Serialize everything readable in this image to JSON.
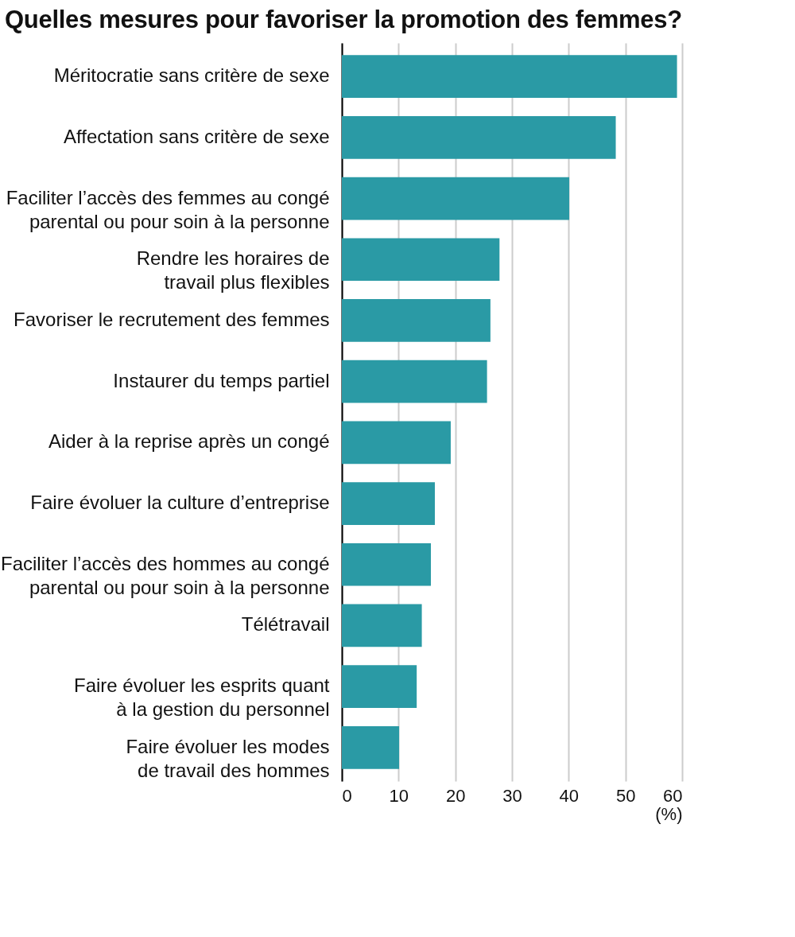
{
  "chart_data": {
    "type": "bar",
    "orientation": "horizontal",
    "title": "Quelles mesures pour favoriser la promotion des femmes?",
    "xlabel": "(%)",
    "categories": [
      "Méritocratie sans critère de sexe",
      "Affectation sans critère de sexe",
      "Faciliter l’accès des femmes au congé\nparental ou pour soin à la personne",
      "Rendre les horaires de\ntravail plus flexibles",
      "Favoriser le recrutement des femmes",
      "Instaurer du temps partiel",
      "Aider à la reprise après un congé",
      "Faire évoluer la culture d’entreprise",
      "Faciliter l’accès des hommes au congé\nparental ou pour soin à la personne",
      "Télétravail",
      "Faire évoluer les esprits quant\nà la gestion du personnel",
      "Faire évoluer les modes\nde travail des hommes"
    ],
    "values": [
      59.1,
      48.3,
      40.1,
      27.8,
      26.2,
      25.6,
      19.2,
      16.4,
      15.7,
      14.1,
      13.2,
      10.1
    ],
    "color": "#2a9aa5",
    "xlim": [
      0,
      60
    ],
    "xticks": [
      0,
      10,
      20,
      30,
      40,
      50,
      60
    ],
    "grid": "x"
  }
}
